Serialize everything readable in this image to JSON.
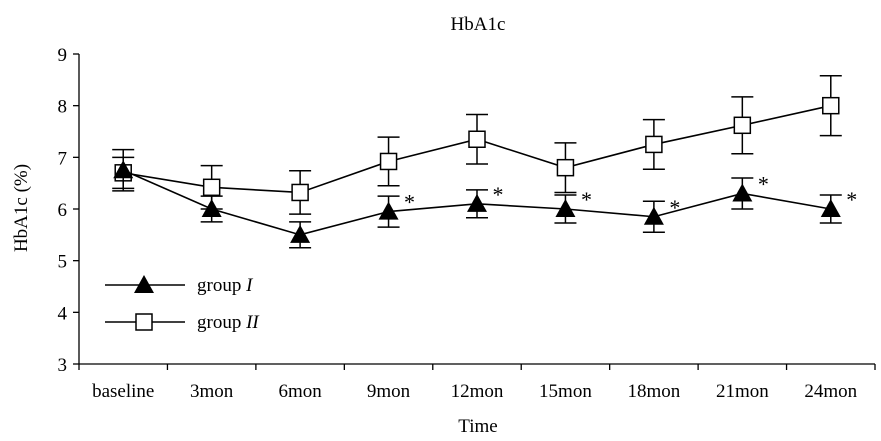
{
  "chart_data": {
    "type": "line",
    "title": "HbA1c",
    "xlabel": "Time",
    "ylabel": "HbA1c (%)",
    "categories": [
      "baseline",
      "3mon",
      "6mon",
      "9mon",
      "12mon",
      "15mon",
      "18mon",
      "21mon",
      "24mon"
    ],
    "ylim": [
      3,
      9
    ],
    "yticks": [
      3,
      4,
      5,
      6,
      7,
      8,
      9
    ],
    "grid": false,
    "legend_position": "lower-left",
    "significance_marker": "*",
    "series": [
      {
        "name_text": "group ",
        "name_italic": "I",
        "marker": "filled-triangle",
        "color": "#000000",
        "values": [
          6.75,
          6.0,
          5.5,
          5.95,
          6.1,
          6.0,
          5.85,
          6.3,
          6.0
        ],
        "errors": [
          0.4,
          0.25,
          0.25,
          0.3,
          0.27,
          0.27,
          0.3,
          0.3,
          0.27
        ],
        "significant": [
          false,
          false,
          false,
          true,
          true,
          true,
          true,
          true,
          true
        ]
      },
      {
        "name_text": "group ",
        "name_italic": "II",
        "marker": "open-square",
        "color": "#000000",
        "values": [
          6.7,
          6.42,
          6.32,
          6.92,
          7.35,
          6.8,
          7.25,
          7.62,
          8.0
        ],
        "errors": [
          0.3,
          0.42,
          0.42,
          0.47,
          0.48,
          0.48,
          0.48,
          0.55,
          0.58
        ],
        "significant": [
          false,
          false,
          false,
          false,
          false,
          false,
          false,
          false,
          false
        ]
      }
    ]
  }
}
